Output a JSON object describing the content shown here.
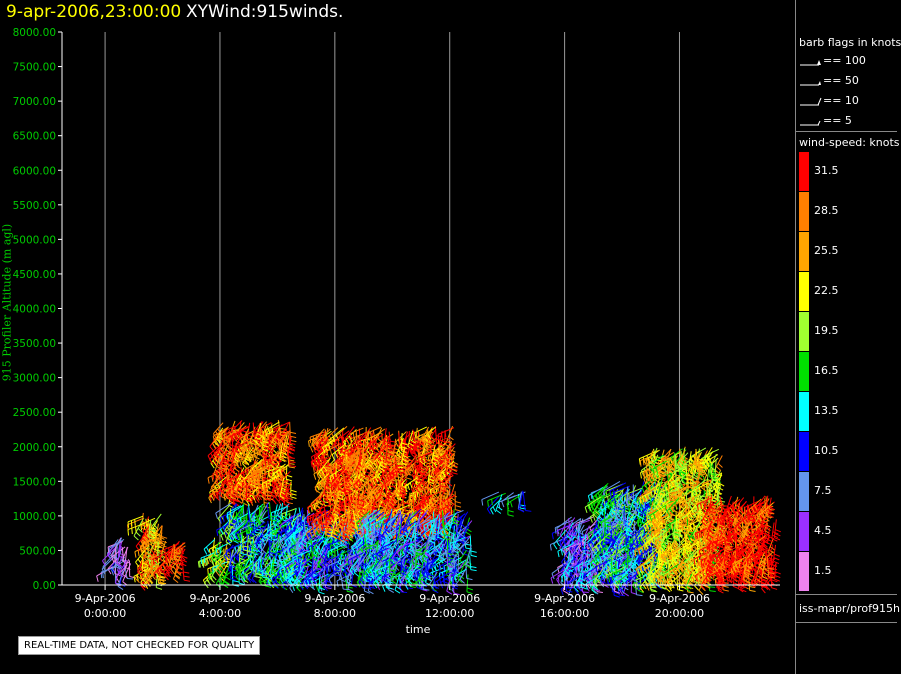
{
  "header": {
    "date_title": "9-apr-2006,23:00:00",
    "main_title": "XYWind:915winds."
  },
  "notice": "REAL-TIME DATA, NOT CHECKED FOR QUALITY",
  "legend": {
    "barb_header": "barb flags in knots",
    "barb_flags": [
      {
        "label": "== 100"
      },
      {
        "label": "== 50"
      },
      {
        "label": "== 10"
      },
      {
        "label": "== 5"
      }
    ],
    "speed_header": "wind-speed: knots",
    "speed_bins": [
      {
        "label": "31.5",
        "color": "#ff0000"
      },
      {
        "label": "28.5",
        "color": "#ff7f00"
      },
      {
        "label": "25.5",
        "color": "#ffa500"
      },
      {
        "label": "22.5",
        "color": "#ffff00"
      },
      {
        "label": "19.5",
        "color": "#a0ff30"
      },
      {
        "label": "16.5",
        "color": "#00e000"
      },
      {
        "label": "13.5",
        "color": "#00ffff"
      },
      {
        "label": "10.5",
        "color": "#0000ff"
      },
      {
        "label": "7.5",
        "color": "#6495ed"
      },
      {
        "label": "4.5",
        "color": "#9b30ff"
      },
      {
        "label": "1.5",
        "color": "#ee82ee"
      }
    ],
    "footer": "iss-mapr/prof915h"
  },
  "chart_data": {
    "type": "scatter",
    "ylabel": "915 Profiler Altitude (m agl)",
    "xlabel": "time",
    "ylim": [
      0,
      8000
    ],
    "xlim_hours": [
      -1.5,
      23.5
    ],
    "grid": "vertical lines at 4-hour ticks",
    "x_ticks": [
      {
        "hour": 0,
        "date": "9-Apr-2006",
        "time": "0:00:00"
      },
      {
        "hour": 4,
        "date": "9-Apr-2006",
        "time": "4:00:00"
      },
      {
        "hour": 8,
        "date": "9-Apr-2006",
        "time": "8:00:00"
      },
      {
        "hour": 12,
        "date": "9-Apr-2006",
        "time": "12:00:00"
      },
      {
        "hour": 16,
        "date": "9-Apr-2006",
        "time": "16:00:00"
      },
      {
        "hour": 20,
        "date": "9-Apr-2006",
        "time": "20:00:00"
      }
    ],
    "y_ticks": [
      "0.00",
      "500.00",
      "1000.00",
      "1500.00",
      "2000.00",
      "2500.00",
      "3000.00",
      "3500.00",
      "4000.00",
      "4500.00",
      "5000.00",
      "5500.00",
      "6000.00",
      "6500.00",
      "7000.00",
      "7500.00",
      "8000.00"
    ],
    "y_tick_values": [
      0,
      500,
      1000,
      1500,
      2000,
      2500,
      3000,
      3500,
      4000,
      4500,
      5000,
      5500,
      6000,
      6500,
      7000,
      7500,
      8000
    ],
    "series": [
      {
        "time_range": [
          0.2,
          0.9
        ],
        "alt_range": [
          200,
          700
        ],
        "speed_knots": 4.5
      },
      {
        "time_range": [
          1.3,
          2.0
        ],
        "alt_range": [
          150,
          1050
        ],
        "speed_knots": 25.5
      },
      {
        "time_range": [
          2.1,
          2.8
        ],
        "alt_range": [
          300,
          650
        ],
        "speed_knots": 31.5
      },
      {
        "time_range": [
          3.8,
          4.3
        ],
        "alt_range": [
          200,
          700
        ],
        "speed_knots": 19.5
      },
      {
        "time_range": [
          4.0,
          6.5
        ],
        "alt_range": [
          1400,
          2400
        ],
        "speed_knots": 28.5
      },
      {
        "time_range": [
          4.3,
          7.0
        ],
        "alt_range": [
          200,
          1200
        ],
        "speed_knots": 13.5
      },
      {
        "time_range": [
          6.5,
          10.0
        ],
        "alt_range": [
          150,
          1100
        ],
        "speed_knots": 10.5
      },
      {
        "time_range": [
          7.5,
          12.2
        ],
        "alt_range": [
          900,
          2300
        ],
        "speed_knots": 28.5
      },
      {
        "time_range": [
          9.0,
          12.8
        ],
        "alt_range": [
          150,
          1100
        ],
        "speed_knots": 10.5
      },
      {
        "time_range": [
          13.7,
          14.7
        ],
        "alt_range": [
          1250,
          1380
        ],
        "speed_knots": 13.5
      },
      {
        "time_range": [
          16.0,
          18.5
        ],
        "alt_range": [
          100,
          1000
        ],
        "speed_knots": 7.5
      },
      {
        "time_range": [
          17.2,
          19.5
        ],
        "alt_range": [
          150,
          1500
        ],
        "speed_knots": 13.5
      },
      {
        "time_range": [
          19.0,
          21.5
        ],
        "alt_range": [
          150,
          2000
        ],
        "speed_knots": 22.5
      },
      {
        "time_range": [
          21.0,
          23.4
        ],
        "alt_range": [
          150,
          1300
        ],
        "speed_knots": 31.5
      }
    ]
  }
}
